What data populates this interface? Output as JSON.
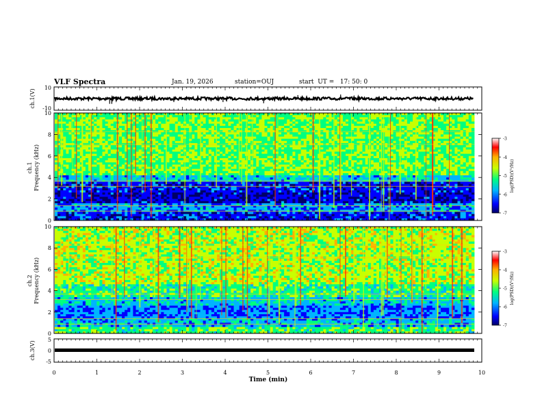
{
  "header": {
    "title": "VLF Spectra",
    "date": "Jan. 19, 2026",
    "station": "station=OUJ",
    "start": "start  UT =   17: 50: 0"
  },
  "chart_data": [
    {
      "type": "line",
      "panel": "waveform-ch1",
      "ylabel": "ch.1(V)",
      "ylim": [
        -10,
        10
      ],
      "yticks": [
        "10",
        "-10"
      ],
      "xlim": [
        0,
        10
      ],
      "baseline": 0,
      "spikes": [
        {
          "x": 1.3,
          "y": -4.5
        },
        {
          "x": 1.35,
          "y": -4.5
        },
        {
          "x": 2.8,
          "y": -3
        },
        {
          "x": 3.95,
          "y": -3
        },
        {
          "x": 4.9,
          "y": -4
        },
        {
          "x": 5.7,
          "y": 3
        },
        {
          "x": 6.7,
          "y": 3.5
        }
      ]
    },
    {
      "type": "heatmap",
      "panel": "spectrogram-ch1",
      "ylabel": "ch.1",
      "ylabel2": "Frequency  (kHz)",
      "ylim": [
        0,
        10
      ],
      "yticks": [
        "0",
        "2",
        "4",
        "6",
        "8",
        "10"
      ],
      "xlim": [
        0,
        10
      ]
    },
    {
      "type": "heatmap",
      "panel": "spectrogram-ch2",
      "ylabel": "ch.2",
      "ylabel2": "Frequency  (kHz)",
      "ylim": [
        0,
        10
      ],
      "yticks": [
        "0",
        "2",
        "4",
        "6",
        "8",
        "10"
      ],
      "xlim": [
        0,
        10
      ],
      "xticks": [
        "0",
        "1",
        "2",
        "3",
        "4",
        "5",
        "6",
        "7",
        "8",
        "9",
        "10"
      ],
      "xlabel": "Time  (min)"
    },
    {
      "type": "line",
      "panel": "waveform-ch3",
      "ylabel": "ch.3(V)",
      "ylim": [
        -5,
        5
      ],
      "yticks": [
        "5",
        "0",
        "-5"
      ],
      "xlim": [
        0,
        10
      ],
      "baseline": 0
    }
  ],
  "colorbar": {
    "ticks": [
      "-3",
      "-4",
      "-5",
      "-6",
      "-7"
    ],
    "label": "log(PSD)(V²/Hz)",
    "range": [
      -7,
      -3
    ],
    "colors": [
      "#000066",
      "#0000ff",
      "#00b4ff",
      "#00ff80",
      "#c8ff00",
      "#ffb000",
      "#ff0000",
      "#ffffff"
    ]
  }
}
